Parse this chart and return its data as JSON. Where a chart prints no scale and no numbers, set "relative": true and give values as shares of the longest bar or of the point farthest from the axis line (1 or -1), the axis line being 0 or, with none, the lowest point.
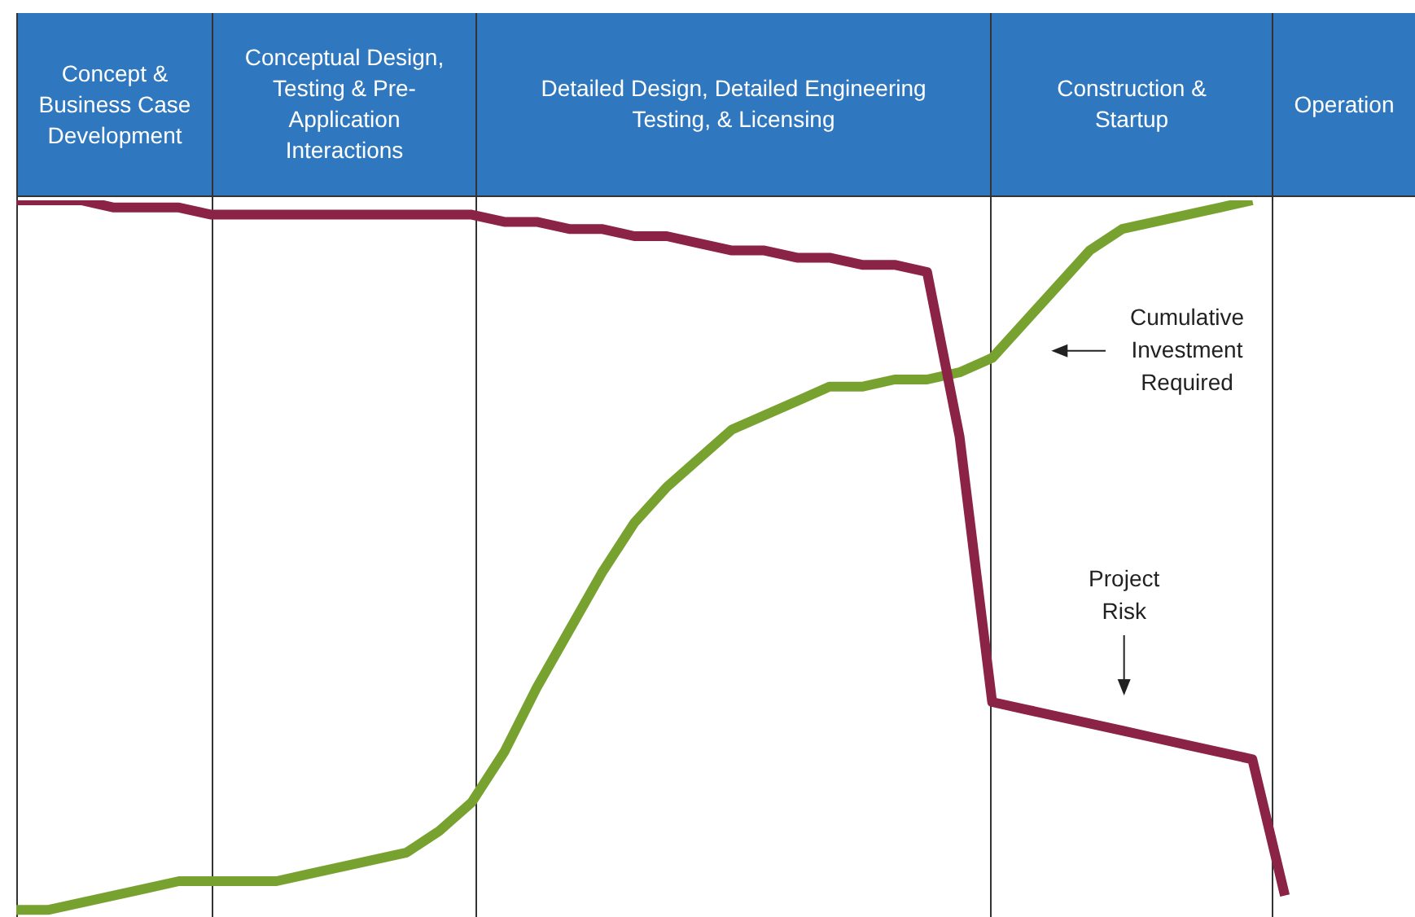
{
  "chart_data": {
    "type": "line",
    "relative": true,
    "marker": "none",
    "categories": [
      null,
      null,
      null,
      null,
      null,
      null,
      null,
      null,
      null,
      null,
      null,
      null,
      null,
      null,
      null,
      null,
      null,
      null,
      null,
      null,
      null,
      null,
      null,
      null,
      null,
      null,
      null,
      null,
      null,
      null,
      null,
      null,
      null,
      null,
      null,
      null,
      null,
      null,
      null,
      null,
      null,
      null,
      null,
      null
    ],
    "series": [
      {
        "color": "#8b2346",
        "values": [
          1.0,
          1.0,
          1.0,
          0.99,
          0.99,
          0.99,
          0.98,
          0.98,
          0.98,
          0.98,
          0.98,
          0.98,
          0.98,
          0.98,
          0.98,
          0.97,
          0.97,
          0.96,
          0.96,
          0.95,
          0.95,
          0.94,
          0.93,
          0.93,
          0.92,
          0.92,
          0.91,
          0.91,
          0.9,
          0.67,
          0.3,
          0.29,
          0.28,
          0.27,
          0.26,
          0.25,
          0.24,
          0.23,
          0.22,
          0.03,
          null,
          null,
          null,
          null
        ]
      },
      {
        "color": "#78a22f",
        "values": [
          0.01,
          0.01,
          0.02,
          0.03,
          0.04,
          0.05,
          0.05,
          0.05,
          0.05,
          0.06,
          0.07,
          0.08,
          0.09,
          0.12,
          0.16,
          0.23,
          0.32,
          0.4,
          0.48,
          0.55,
          0.6,
          0.64,
          0.68,
          0.7,
          0.72,
          0.74,
          0.74,
          0.75,
          0.75,
          0.76,
          0.78,
          0.83,
          0.88,
          0.93,
          0.96,
          0.97,
          0.98,
          0.99,
          1.0,
          null,
          null,
          null,
          null,
          null
        ]
      }
    ],
    "annotations": [
      "Concept & Business Case Development",
      "Conceptual Design, Testing & Pre-Application Interactions",
      "Detailed Design, Detailed Engineering Testing, & Licensing",
      "Construction & Startup",
      "Operation",
      "Cumulative Investment Required",
      "Project Risk"
    ],
    "grid": "x"
  }
}
